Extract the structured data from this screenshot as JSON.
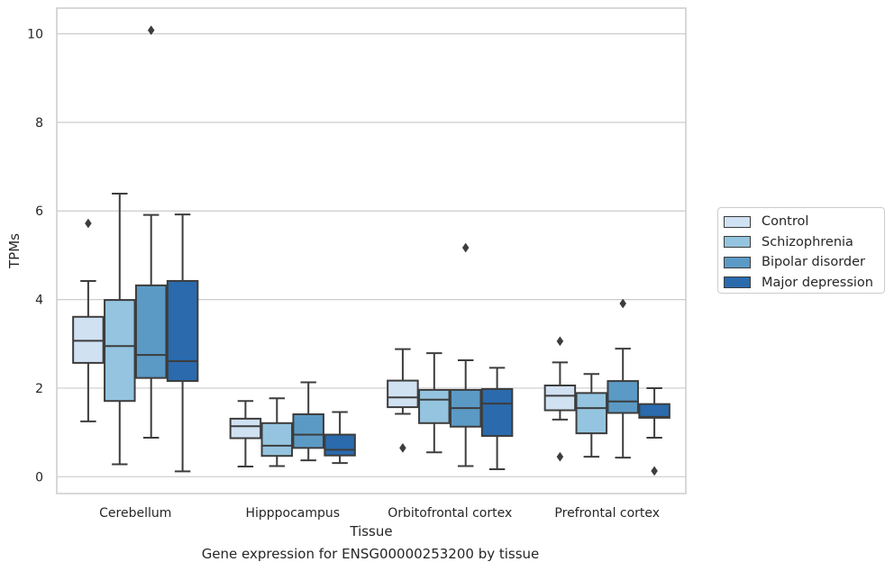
{
  "caption": "Gene expression for ENSG00000253200 by tissue",
  "chart_data": {
    "type": "box",
    "xlabel": "Tissue",
    "ylabel": "TPMs",
    "ylim": [
      -0.38,
      10.58
    ],
    "yticks": [
      0,
      2,
      4,
      6,
      8,
      10
    ],
    "grid": true,
    "legend_position": "right",
    "categories": [
      "Cerebellum",
      "Hipppocampus",
      "Orbitofrontal cortex",
      "Prefrontal cortex"
    ],
    "series": [
      {
        "name": "Control",
        "color": "#d0e1f2",
        "boxes": [
          {
            "whisker_low": 1.25,
            "q1": 2.57,
            "median": 3.07,
            "q3": 3.61,
            "whisker_high": 4.42,
            "outliers": [
              5.72
            ]
          },
          {
            "whisker_low": 0.23,
            "q1": 0.87,
            "median": 1.14,
            "q3": 1.31,
            "whisker_high": 1.71,
            "outliers": []
          },
          {
            "whisker_low": 1.42,
            "q1": 1.57,
            "median": 1.79,
            "q3": 2.17,
            "whisker_high": 2.88,
            "outliers": [
              0.65
            ]
          },
          {
            "whisker_low": 1.29,
            "q1": 1.5,
            "median": 1.83,
            "q3": 2.06,
            "whisker_high": 2.58,
            "outliers": [
              3.06,
              0.45
            ]
          }
        ]
      },
      {
        "name": "Schizophrenia",
        "color": "#94c4df",
        "boxes": [
          {
            "whisker_low": 0.28,
            "q1": 1.71,
            "median": 2.95,
            "q3": 3.99,
            "whisker_high": 6.39,
            "outliers": []
          },
          {
            "whisker_low": 0.24,
            "q1": 0.47,
            "median": 0.7,
            "q3": 1.21,
            "whisker_high": 1.77,
            "outliers": []
          },
          {
            "whisker_low": 0.55,
            "q1": 1.21,
            "median": 1.74,
            "q3": 1.96,
            "whisker_high": 2.79,
            "outliers": []
          },
          {
            "whisker_low": 0.45,
            "q1": 0.98,
            "median": 1.55,
            "q3": 1.89,
            "whisker_high": 2.32,
            "outliers": []
          }
        ]
      },
      {
        "name": "Bipolar disorder",
        "color": "#5b9ac5",
        "boxes": [
          {
            "whisker_low": 0.88,
            "q1": 2.23,
            "median": 2.75,
            "q3": 4.32,
            "whisker_high": 5.91,
            "outliers": [
              10.08
            ]
          },
          {
            "whisker_low": 0.37,
            "q1": 0.65,
            "median": 0.95,
            "q3": 1.41,
            "whisker_high": 2.13,
            "outliers": []
          },
          {
            "whisker_low": 0.24,
            "q1": 1.13,
            "median": 1.55,
            "q3": 1.96,
            "whisker_high": 2.63,
            "outliers": [
              5.17
            ]
          },
          {
            "whisker_low": 0.43,
            "q1": 1.44,
            "median": 1.7,
            "q3": 2.16,
            "whisker_high": 2.89,
            "outliers": [
              3.91
            ]
          }
        ]
      },
      {
        "name": "Major depression",
        "color": "#2a6aad",
        "boxes": [
          {
            "whisker_low": 0.12,
            "q1": 2.16,
            "median": 2.61,
            "q3": 4.42,
            "whisker_high": 5.92,
            "outliers": []
          },
          {
            "whisker_low": 0.31,
            "q1": 0.48,
            "median": 0.61,
            "q3": 0.95,
            "whisker_high": 1.46,
            "outliers": []
          },
          {
            "whisker_low": 0.17,
            "q1": 0.92,
            "median": 1.65,
            "q3": 1.98,
            "whisker_high": 2.46,
            "outliers": []
          },
          {
            "whisker_low": 0.88,
            "q1": 1.33,
            "median": 1.35,
            "q3": 1.64,
            "whisker_high": 2.0,
            "outliers": [
              0.13
            ]
          }
        ]
      }
    ]
  }
}
